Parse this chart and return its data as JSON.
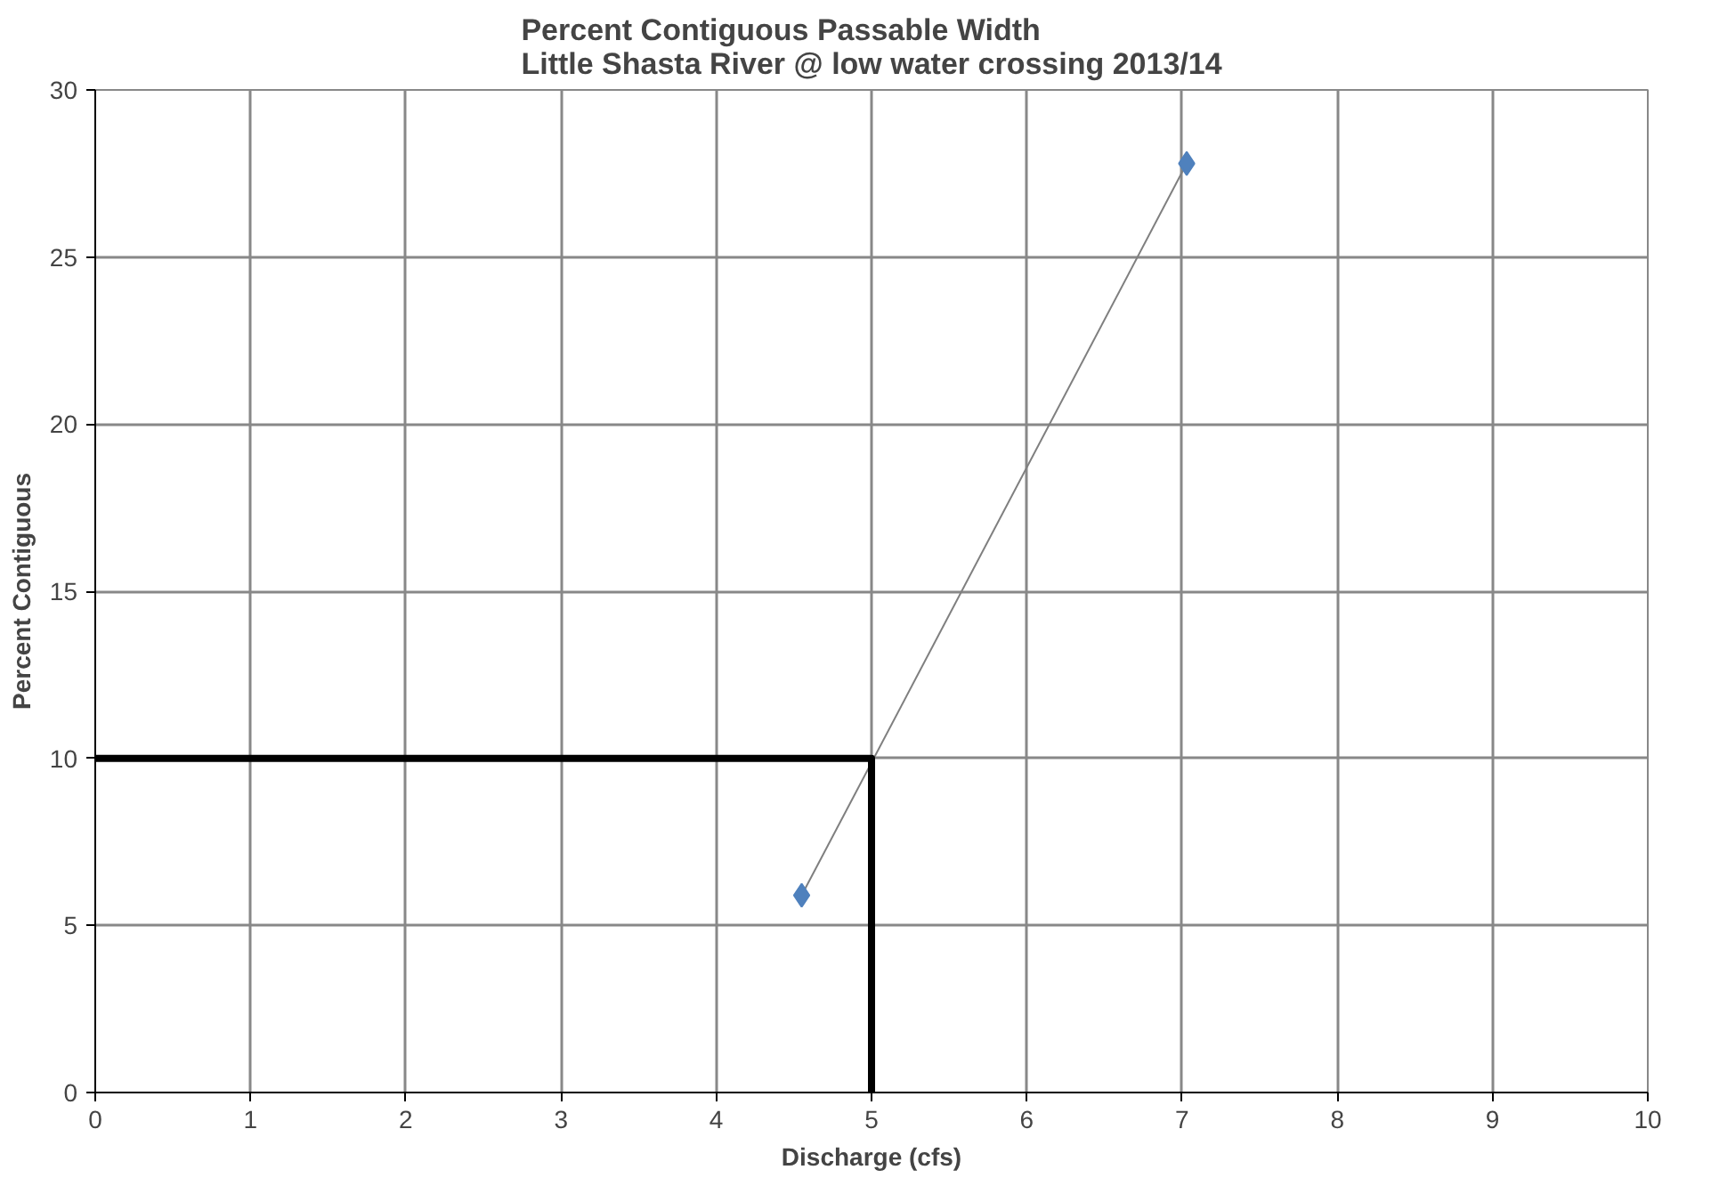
{
  "chart_data": {
    "type": "line",
    "title": "Percent Contiguous Passable Width\nLittle Shasta River @ low water crossing 2013/14",
    "xlabel": "Discharge (cfs)",
    "ylabel": "Percent Contiguous",
    "xlim": [
      0,
      10
    ],
    "xticks": [
      0,
      1,
      2,
      3,
      4,
      5,
      6,
      7,
      8,
      9,
      10
    ],
    "ylim": [
      0,
      30
    ],
    "yticks": [
      0,
      5,
      10,
      15,
      20,
      25,
      30
    ],
    "grid": true,
    "series": [
      {
        "color": "#7f7f7f",
        "x": [
          4.55,
          7.03
        ],
        "values": [
          5.9,
          27.8
        ],
        "marker": "none"
      },
      {
        "type": "scatter",
        "color": "#4f81bd",
        "x": [
          4.55,
          7.03
        ],
        "values": [
          5.9,
          27.8
        ],
        "marker": "diamond"
      },
      {
        "color": "#000000",
        "x": [
          0,
          5,
          5
        ],
        "values": [
          10,
          10,
          0
        ],
        "marker": "none"
      }
    ]
  }
}
